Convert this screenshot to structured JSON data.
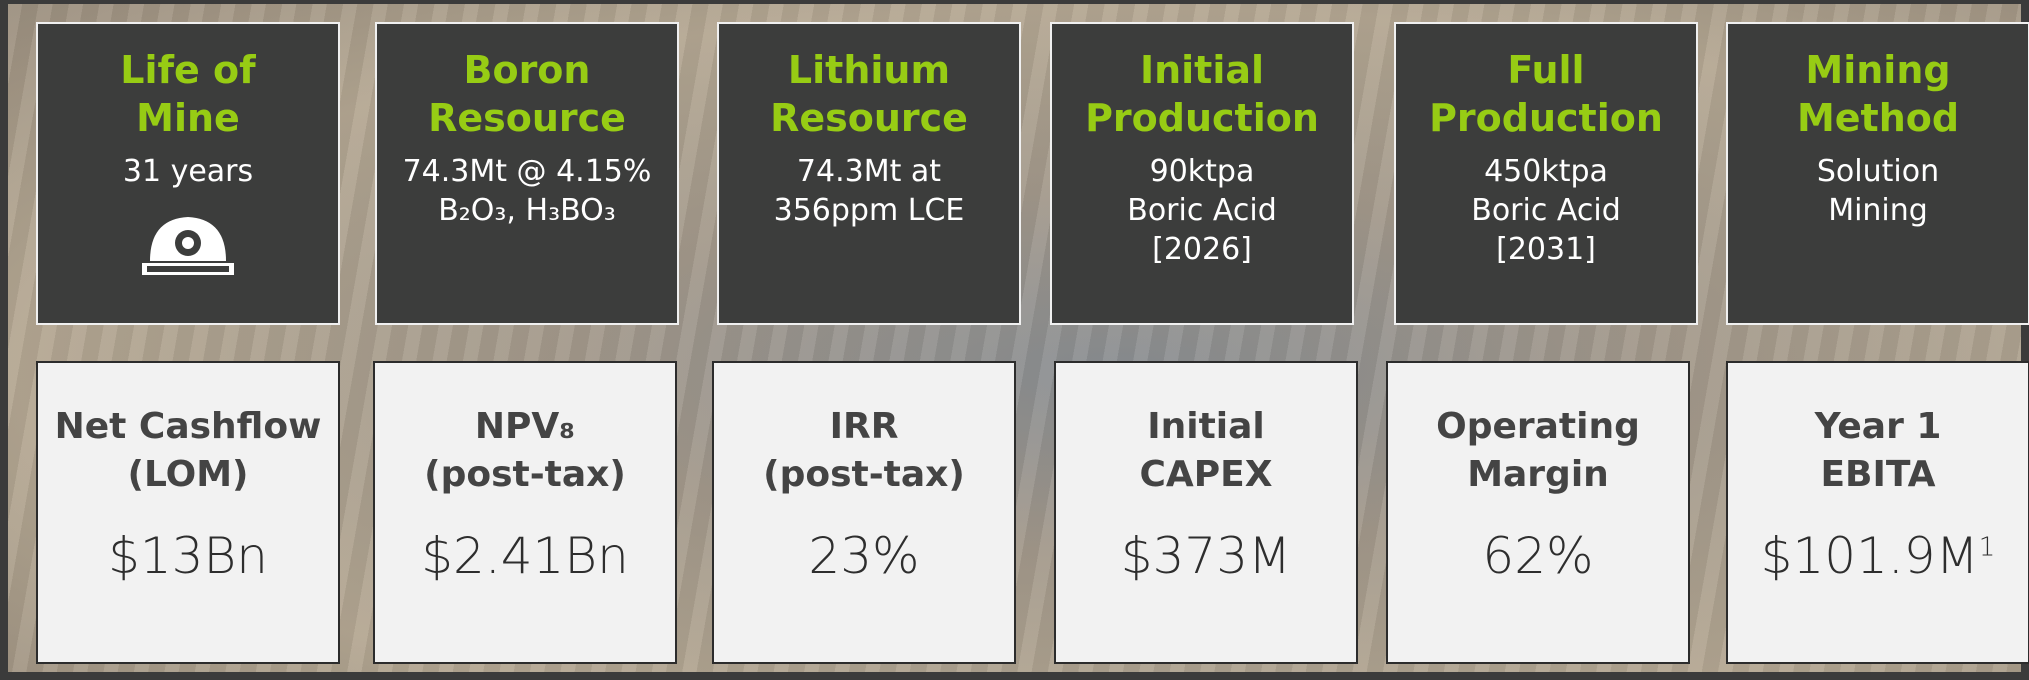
{
  "top_cards": [
    {
      "title_lines": [
        "Life of",
        "Mine"
      ],
      "text_lines": [
        "31 years"
      ]
    },
    {
      "title_lines": [
        "Boron",
        "Resource"
      ],
      "text_lines": [
        "74.3Mt @ 4.15%",
        "B₂O₃, H₃BO₃"
      ]
    },
    {
      "title_lines": [
        "Lithium",
        "Resource"
      ],
      "text_lines": [
        "74.3Mt at",
        "356ppm LCE"
      ]
    },
    {
      "title_lines": [
        "Initial",
        "Production"
      ],
      "text_lines": [
        "90ktpa",
        "Boric Acid",
        "[2026]"
      ]
    },
    {
      "title_lines": [
        "Full",
        "Production"
      ],
      "text_lines": [
        "450ktpa",
        "Boric Acid",
        "[2031]"
      ]
    },
    {
      "title_lines": [
        "Mining",
        "Method"
      ],
      "text_lines": [
        "Solution",
        "Mining"
      ]
    }
  ],
  "bottom_cards": [
    {
      "title_lines": [
        "Net Cashflow",
        "(LOM)"
      ],
      "value": "$13Bn"
    },
    {
      "title_lines": [
        "NPV₈",
        "(post-tax)"
      ],
      "value": "$2.41Bn"
    },
    {
      "title_lines": [
        "IRR",
        "(post-tax)"
      ],
      "value": "23%"
    },
    {
      "title_lines": [
        "Initial",
        "CAPEX"
      ],
      "value": "$373M"
    },
    {
      "title_lines": [
        "Operating",
        "Margin"
      ],
      "value": "62%"
    },
    {
      "title_lines": [
        "Year 1",
        "EBITA"
      ],
      "value": "$101.9M",
      "footnote": "1"
    }
  ]
}
